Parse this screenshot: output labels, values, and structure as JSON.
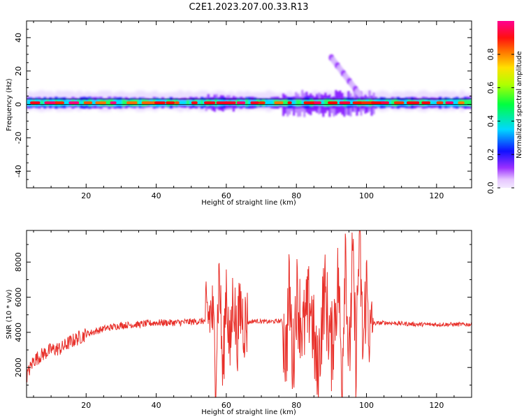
{
  "figure": {
    "title": "C2E1.2023.207.00.33.R13"
  },
  "chart_data": [
    {
      "type": "heatmap",
      "title": "",
      "xlabel": "Height of straight line (km)",
      "ylabel": "Frequency (Hz)",
      "xlim": [
        3,
        130
      ],
      "ylim": [
        -50,
        50
      ],
      "xticks": [
        20,
        40,
        60,
        80,
        100,
        120
      ],
      "yticks": [
        -40,
        -20,
        0,
        20,
        40
      ],
      "colorbar": {
        "label": "Normalized spectral amplitude",
        "range": [
          0,
          1
        ],
        "ticks": [
          "0.0",
          "0.2",
          "0.4",
          "0.6",
          "0.8"
        ],
        "colormap": [
          "#f2e6ff",
          "#e0b3ff",
          "#8000ff",
          "#0000ff",
          "#00ffff",
          "#00ff00",
          "#ffff00",
          "#ff8000",
          "#ff0000",
          "#ff00a0"
        ]
      },
      "description_series": [
        {
          "name": "dc_band",
          "x_range": [
            3,
            130
          ],
          "freq_center": 1,
          "peak_amplitude": 0.95
        },
        {
          "name": "disturbance_1",
          "x_range": [
            54,
            62
          ],
          "freq_range": [
            -4,
            6
          ],
          "peak_amplitude": 0.35
        },
        {
          "name": "disturbance_2",
          "x_range": [
            76,
            102
          ],
          "freq_range": [
            -7,
            8
          ],
          "peak_amplitude": 0.45
        },
        {
          "name": "diagonal_streak",
          "x_start": 90,
          "x_end": 98,
          "freq_start": 28,
          "freq_end": 6,
          "peak_amplitude": 0.3
        }
      ]
    },
    {
      "type": "line",
      "title": "",
      "xlabel": "Height of straight line (km)",
      "ylabel": "SNR (10 * v/v)",
      "xlim": [
        3,
        130
      ],
      "ylim": [
        300,
        9800
      ],
      "xticks": [
        20,
        40,
        60,
        80,
        100,
        120
      ],
      "yticks": [
        2000,
        4000,
        6000,
        8000
      ],
      "line_color": "#e8302a",
      "series": [
        {
          "x": [
            3,
            5,
            8,
            10,
            13,
            15,
            18,
            20,
            25,
            30,
            35,
            40,
            45,
            50,
            54,
            56,
            57,
            58,
            59,
            60,
            61,
            62,
            63,
            64,
            65,
            68,
            72,
            76,
            77,
            78,
            79,
            80,
            82,
            84,
            86,
            88,
            90,
            92,
            93,
            94,
            95,
            96,
            97,
            98,
            99,
            100,
            101,
            102,
            105,
            110,
            115,
            120,
            125,
            130
          ],
          "values": [
            1500,
            2400,
            2800,
            3000,
            3100,
            3400,
            3700,
            3900,
            4200,
            4400,
            4450,
            4550,
            4550,
            4600,
            4650,
            5200,
            2000,
            7700,
            1200,
            7000,
            2500,
            6500,
            3500,
            5500,
            4500,
            4650,
            4600,
            4650,
            2600,
            6500,
            2100,
            6200,
            4000,
            5800,
            1400,
            6500,
            3000,
            7200,
            1000,
            9500,
            1500,
            8200,
            2500,
            9800,
            2800,
            6800,
            3500,
            4500,
            4550,
            4500,
            4450,
            4450,
            4450,
            4450
          ]
        }
      ]
    }
  ]
}
